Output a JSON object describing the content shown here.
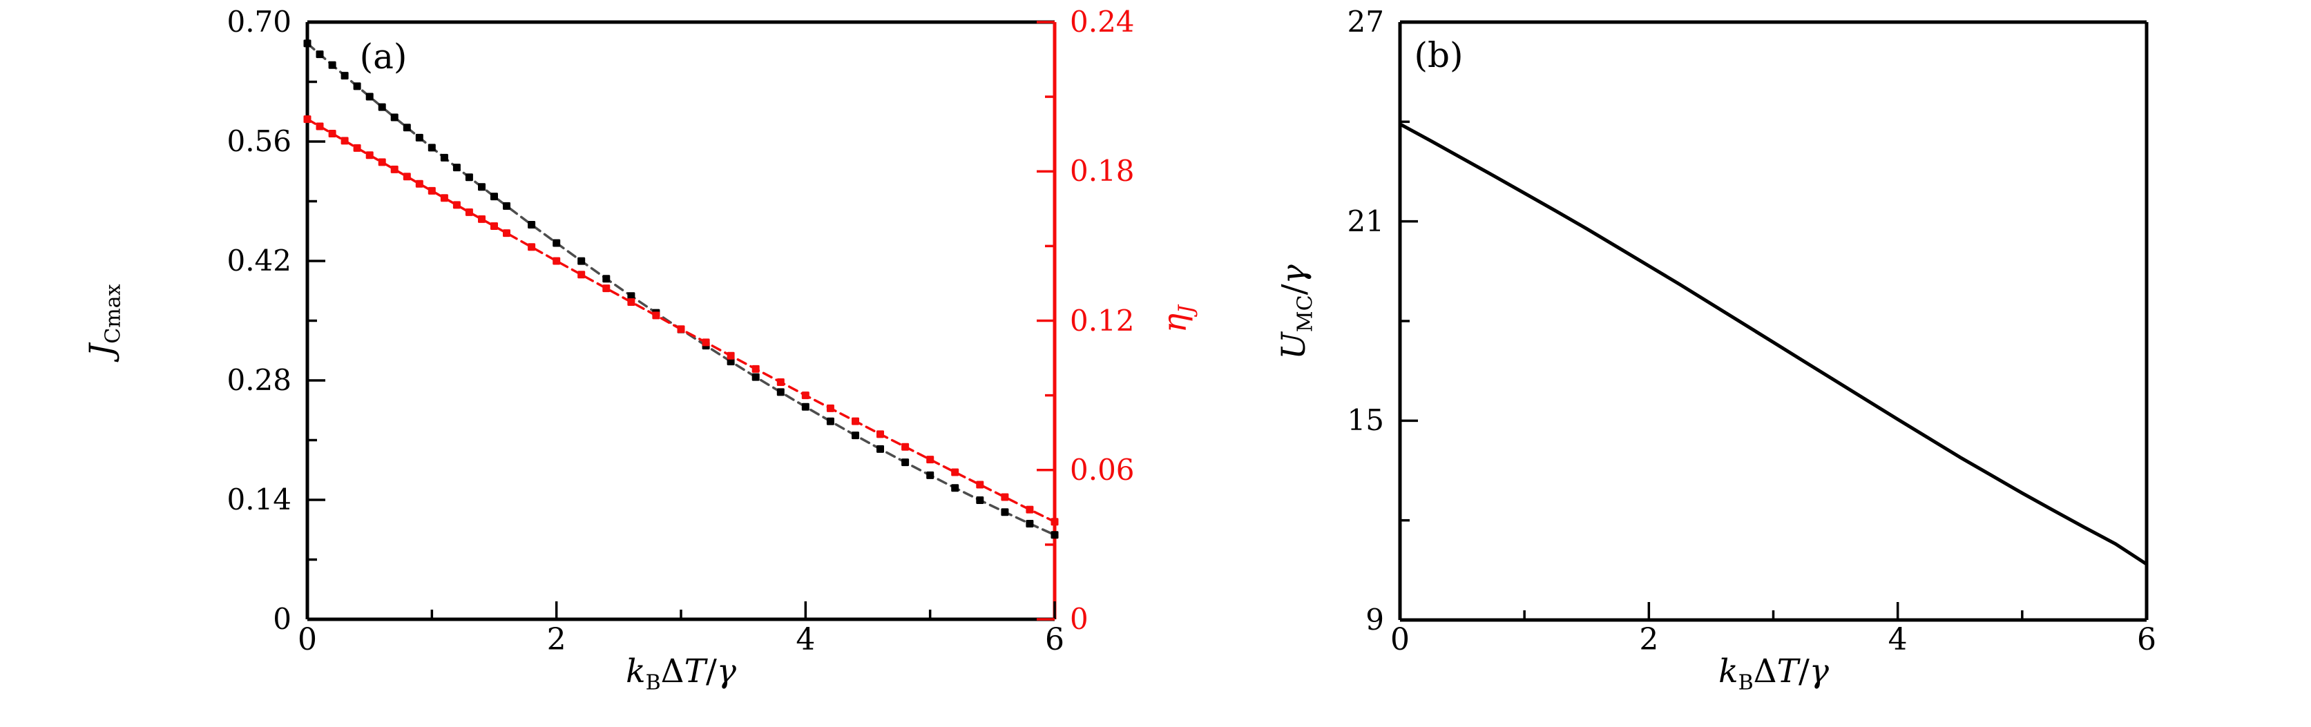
{
  "figure": {
    "background": "#ffffff",
    "red": "#f40b0b",
    "gray_line": "#4d4d4d",
    "black": "#000000"
  },
  "chart_data": [
    {
      "id": "a",
      "type": "line",
      "tag": "(a)",
      "xlabel_runs": [
        {
          "t": "k",
          "i": true
        },
        {
          "t": "B",
          "s": true
        },
        {
          "t": "Δ"
        },
        {
          "t": "T",
          "i": true
        },
        {
          "t": "/"
        },
        {
          "t": "γ",
          "i": true
        }
      ],
      "xlim": [
        0,
        6
      ],
      "x_major_ticks": [
        0,
        2,
        4,
        6
      ],
      "x_tick_labels": [
        "0",
        "2",
        "4",
        "6"
      ],
      "x_minor_ticks": [
        1,
        3,
        5
      ],
      "left_axis": {
        "label_runs": [
          {
            "t": "J",
            "i": true
          },
          {
            "t": "Cmax",
            "s": true
          }
        ],
        "lim": [
          0,
          0.7
        ],
        "major_ticks": [
          0,
          0.14,
          0.28,
          0.42,
          0.56,
          0.7
        ],
        "tick_labels": [
          "0",
          "0.14",
          "0.28",
          "0.42",
          "0.56",
          "0.70"
        ],
        "minor_ticks": [
          0.07,
          0.21,
          0.35,
          0.49,
          0.63
        ],
        "color": "#000000"
      },
      "right_axis": {
        "label_runs": [
          {
            "t": "η",
            "i": true
          },
          {
            "t": "J",
            "s": true,
            "i": true
          }
        ],
        "lim": [
          0,
          0.24
        ],
        "major_ticks": [
          0,
          0.06,
          0.12,
          0.18,
          0.24
        ],
        "tick_labels": [
          "0",
          "0.06",
          "0.12",
          "0.18",
          "0.24"
        ],
        "minor_ticks": [
          0.03,
          0.09,
          0.15,
          0.21
        ],
        "color": "#f40b0b"
      },
      "series": [
        {
          "name": "J_Cmax",
          "axis": "left",
          "marker": "square",
          "marker_color": "#000000",
          "line_color": "#4d4d4d",
          "line_style": "dashed",
          "x": [
            0,
            0.1,
            0.2,
            0.3,
            0.4,
            0.5,
            0.6,
            0.7,
            0.8,
            0.9,
            1.0,
            1.1,
            1.2,
            1.3,
            1.4,
            1.5,
            1.6,
            1.8,
            2.0,
            2.2,
            2.4,
            2.6,
            2.8,
            3.0,
            3.2,
            3.4,
            3.6,
            3.8,
            4.0,
            4.2,
            4.4,
            4.6,
            4.8,
            5.0,
            5.2,
            5.4,
            5.6,
            5.8,
            6.0
          ],
          "y": [
            0.675,
            0.6623,
            0.6497,
            0.6372,
            0.6248,
            0.6126,
            0.6004,
            0.5883,
            0.5764,
            0.5645,
            0.5528,
            0.5411,
            0.5296,
            0.5181,
            0.5068,
            0.4956,
            0.4844,
            0.4625,
            0.441,
            0.4199,
            0.3992,
            0.379,
            0.3592,
            0.3398,
            0.3208,
            0.3022,
            0.284,
            0.2663,
            0.249,
            0.2321,
            0.2156,
            0.1996,
            0.184,
            0.1688,
            0.154,
            0.1396,
            0.1257,
            0.1121,
            0.099
          ]
        },
        {
          "name": "eta_J",
          "axis": "right",
          "marker": "square",
          "marker_color": "#f40b0b",
          "line_color": "#f40b0b",
          "line_style": "dashed",
          "x": [
            0,
            0.1,
            0.2,
            0.3,
            0.4,
            0.5,
            0.6,
            0.7,
            0.8,
            0.9,
            1.0,
            1.1,
            1.2,
            1.3,
            1.4,
            1.5,
            1.6,
            1.8,
            2.0,
            2.2,
            2.4,
            2.6,
            2.8,
            3.0,
            3.2,
            3.4,
            3.6,
            3.8,
            4.0,
            4.2,
            4.4,
            4.6,
            4.8,
            5.0,
            5.2,
            5.4,
            5.6,
            5.8,
            6.0
          ],
          "y": [
            0.201,
            0.1981,
            0.1952,
            0.1923,
            0.1894,
            0.1865,
            0.1837,
            0.1808,
            0.1779,
            0.175,
            0.1722,
            0.1693,
            0.1665,
            0.1636,
            0.1608,
            0.158,
            0.1552,
            0.1496,
            0.144,
            0.1385,
            0.133,
            0.1275,
            0.1221,
            0.1166,
            0.1113,
            0.1059,
            0.1006,
            0.0953,
            0.09,
            0.0848,
            0.0796,
            0.0744,
            0.0693,
            0.0642,
            0.0591,
            0.0541,
            0.0491,
            0.0441,
            0.0392
          ]
        }
      ]
    },
    {
      "id": "b",
      "type": "line",
      "tag": "(b)",
      "xlabel_runs": [
        {
          "t": "k",
          "i": true
        },
        {
          "t": "B",
          "s": true
        },
        {
          "t": "Δ"
        },
        {
          "t": "T",
          "i": true
        },
        {
          "t": "/"
        },
        {
          "t": "γ",
          "i": true
        }
      ],
      "xlim": [
        0,
        6
      ],
      "x_major_ticks": [
        0,
        2,
        4,
        6
      ],
      "x_tick_labels": [
        "0",
        "2",
        "4",
        "6"
      ],
      "x_minor_ticks": [
        1,
        3,
        5
      ],
      "left_axis": {
        "label_runs": [
          {
            "t": "U",
            "i": true
          },
          {
            "t": "MC",
            "s": true
          },
          {
            "t": "/"
          },
          {
            "t": "γ",
            "i": true
          }
        ],
        "lim": [
          9,
          27
        ],
        "major_ticks": [
          9,
          15,
          21,
          27
        ],
        "tick_labels": [
          "9",
          "15",
          "21",
          "27"
        ],
        "minor_ticks": [
          12,
          18,
          24
        ],
        "color": "#000000"
      },
      "series": [
        {
          "name": "U_MC",
          "axis": "left",
          "marker": "none",
          "marker_color": "#000000",
          "line_color": "#000000",
          "line_style": "solid",
          "x": [
            0,
            0.25,
            0.5,
            0.75,
            1.0,
            1.25,
            1.5,
            1.75,
            2.0,
            2.25,
            2.5,
            2.75,
            3.0,
            3.25,
            3.5,
            3.75,
            4.0,
            4.25,
            4.5,
            4.75,
            5.0,
            5.25,
            5.5,
            5.75,
            6.0
          ],
          "y": [
            23.93,
            23.42,
            22.9,
            22.38,
            21.85,
            21.32,
            20.78,
            20.22,
            19.66,
            19.1,
            18.52,
            17.94,
            17.36,
            16.78,
            16.2,
            15.62,
            15.04,
            14.47,
            13.9,
            13.36,
            12.82,
            12.3,
            11.79,
            11.29,
            10.68
          ]
        }
      ]
    }
  ]
}
